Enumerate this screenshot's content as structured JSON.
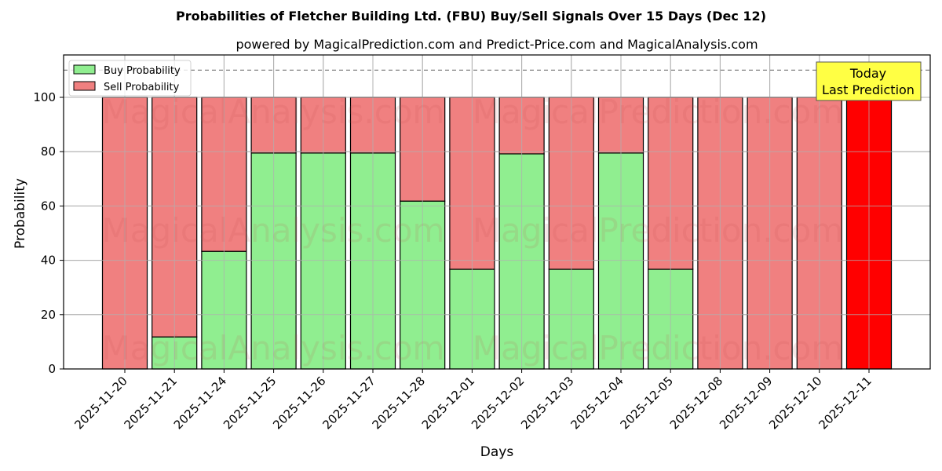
{
  "chart_data": {
    "type": "bar",
    "stacked": true,
    "title": "Probabilities of Fletcher Building Ltd. (FBU) Buy/Sell Signals Over 15 Days (Dec 12)",
    "subtitle": "powered by MagicalPrediction.com and Predict-Price.com and MagicalAnalysis.com",
    "xlabel": "Days",
    "ylabel": "Probability",
    "ylim": [
      0,
      115
    ],
    "yticks": [
      0,
      20,
      40,
      60,
      80,
      100
    ],
    "grid": true,
    "legend_position": "upper left",
    "categories": [
      "2025-11-20",
      "2025-11-21",
      "2025-11-24",
      "2025-11-25",
      "2025-11-26",
      "2025-11-27",
      "2025-11-28",
      "2025-12-01",
      "2025-12-02",
      "2025-12-03",
      "2025-12-04",
      "2025-12-05",
      "2025-12-08",
      "2025-12-09",
      "2025-12-10",
      "2025-12-11"
    ],
    "series": [
      {
        "name": "Buy Probability",
        "color": "#90ee90",
        "values": [
          0,
          11.8,
          43.3,
          79.5,
          79.5,
          79.5,
          61.8,
          36.7,
          79.2,
          36.7,
          79.5,
          36.7,
          0,
          0,
          0,
          0
        ]
      },
      {
        "name": "Sell Probability",
        "color": "#f08080",
        "values": [
          100,
          88.2,
          56.7,
          20.5,
          20.5,
          20.5,
          38.2,
          63.3,
          20.8,
          63.3,
          20.5,
          63.3,
          100,
          100,
          100,
          100
        ]
      }
    ],
    "highlight": {
      "index": 15,
      "color": "#ff0000"
    },
    "reference_line": {
      "y": 110,
      "style": "dashed",
      "color": "#808080"
    },
    "annotation": {
      "lines": [
        "Today",
        "Last Prediction"
      ],
      "background": "#ffff44",
      "x_index": 15
    },
    "watermarks": [
      "MagicalAnalysis.com",
      "MagicalPrediction.com"
    ]
  }
}
